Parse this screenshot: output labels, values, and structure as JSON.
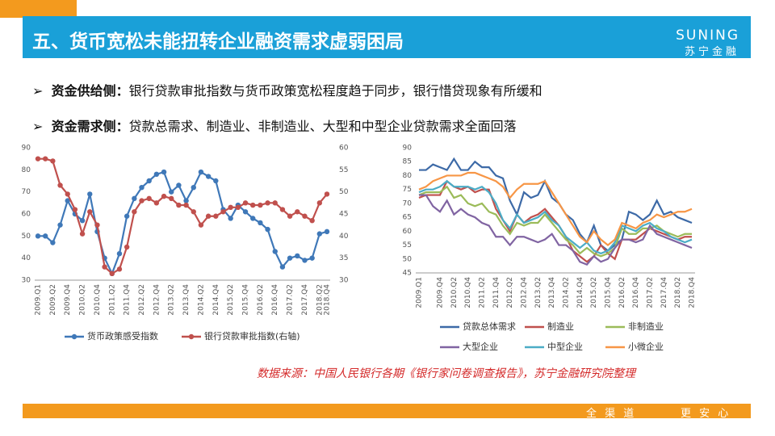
{
  "header": {
    "title": "五、货币宽松未能扭转企业融资需求虚弱困局",
    "logo_en": "SUNING",
    "logo_cn": "苏宁金融"
  },
  "bullets": [
    {
      "label": "资金供给侧：",
      "text": "银行贷款审批指数与货币政策宽松程度趋于同步，银行惜贷现象有所缓和"
    },
    {
      "label": "资金需求侧：",
      "text": "贷款总需求、制造业、非制造业、大型和中型企业贷款需求全面回落"
    }
  ],
  "chart_data": [
    {
      "type": "line",
      "marker": "circle",
      "categories": [
        "2009.Q1",
        null,
        "2009.Q2",
        null,
        "2009.Q4",
        null,
        "2010.Q2",
        null,
        "2010.Q4",
        null,
        "2011.Q2",
        null,
        "2011.Q4",
        null,
        "2012.Q2",
        null,
        "2012.Q4",
        null,
        "2013.Q2",
        null,
        "2013.Q4",
        null,
        "2014.Q2",
        null,
        "2014.Q4",
        null,
        "2015.Q2",
        null,
        "2015.Q4",
        null,
        "2016.Q2",
        null,
        "2016.Q4",
        null,
        "2017.Q2",
        null,
        "2017.Q4",
        null,
        "2018.Q2",
        "2018.Q4"
      ],
      "ylim": [
        30,
        90
      ],
      "yticks": [
        30,
        40,
        50,
        60,
        70,
        80,
        90
      ],
      "y2lim": [
        30,
        60
      ],
      "y2ticks": [
        30,
        35,
        40,
        45,
        50,
        55,
        60
      ],
      "series": [
        {
          "name": "货币政策感受指数",
          "color": "#3f78b8",
          "values": [
            50,
            50,
            47,
            55,
            66,
            60,
            57,
            69,
            52,
            40,
            33,
            42,
            59,
            67,
            72,
            75,
            78,
            79,
            70,
            73,
            66,
            72,
            79,
            77,
            75,
            62,
            58,
            64,
            61,
            58,
            56,
            53,
            43,
            36,
            40,
            41,
            39,
            40,
            51,
            52
          ]
        },
        {
          "name": "银行贷款审批指数(右轴)",
          "color": "#c0504d",
          "axis": "y2",
          "values": [
            57.5,
            57.5,
            57,
            51.5,
            49.5,
            46,
            40.5,
            45.5,
            42.5,
            33,
            31.5,
            32.5,
            37.5,
            45.5,
            48,
            48.5,
            47.5,
            49,
            48.5,
            47,
            47,
            45.5,
            42.5,
            44.5,
            44.5,
            45.5,
            46.5,
            46.5,
            47.5,
            47,
            47,
            47.5,
            47.5,
            46,
            44.5,
            45.5,
            44.5,
            43.5,
            47.5,
            49.5
          ]
        }
      ]
    },
    {
      "type": "line",
      "categories": [
        "2009.Q1",
        null,
        null,
        "2009.Q4",
        null,
        "2010.Q2",
        null,
        "2010.Q4",
        null,
        "2011.Q2",
        null,
        "2011.Q4",
        null,
        "2012.Q2",
        null,
        "2012.Q4",
        null,
        "2013.Q2",
        null,
        "2013.Q4",
        null,
        "2014.Q2",
        null,
        "2014.Q4",
        null,
        "2015.Q2",
        null,
        "2015.Q4",
        null,
        "2016.Q2",
        null,
        "2016.Q4",
        null,
        "2017.Q2",
        null,
        "2017.Q4",
        null,
        "2018.Q2",
        null,
        "2018.Q4"
      ],
      "ylim": [
        45,
        90
      ],
      "yticks": [
        45,
        50,
        55,
        60,
        65,
        70,
        75,
        80,
        85,
        90
      ],
      "series": [
        {
          "name": "贷款总体需求",
          "color": "#3d6aa7",
          "values": [
            82,
            82,
            84,
            83,
            82,
            86,
            82,
            82,
            85,
            83,
            83,
            80,
            79,
            71,
            66,
            74,
            72,
            73,
            78,
            72,
            70,
            66,
            64,
            59,
            56,
            62,
            55,
            53,
            55,
            57,
            67,
            66,
            64,
            66,
            71,
            66,
            67,
            65,
            64,
            63
          ]
        },
        {
          "name": "制造业",
          "color": "#c0504d",
          "values": [
            72,
            73,
            73,
            73,
            78,
            76,
            75,
            76,
            74,
            75,
            75,
            68,
            64,
            60,
            66,
            63,
            65,
            66,
            68,
            65,
            62,
            58,
            53,
            51,
            49,
            51,
            55,
            52,
            50,
            57,
            57,
            57,
            59,
            61,
            60,
            59,
            58,
            57,
            58,
            58
          ]
        },
        {
          "name": "非制造业",
          "color": "#9bbb59",
          "values": [
            73,
            74,
            74,
            74,
            76,
            72,
            73,
            70,
            69,
            70,
            67,
            66,
            62,
            59,
            63,
            62,
            63,
            63,
            66,
            63,
            60,
            57,
            55,
            52,
            54,
            52,
            51,
            52,
            54,
            61,
            59,
            59,
            61,
            61,
            62,
            60,
            59,
            58,
            59,
            59
          ]
        },
        {
          "name": "大型企业",
          "color": "#8064a2",
          "values": [
            73,
            73,
            69,
            67,
            71,
            66,
            68,
            66,
            65,
            63,
            62,
            58,
            58,
            55,
            58,
            58,
            57,
            56,
            57,
            59,
            55,
            55,
            53,
            49,
            48,
            51,
            49,
            50,
            54,
            57,
            57,
            56,
            57,
            62,
            59,
            58,
            57,
            56,
            55,
            54
          ]
        },
        {
          "name": "中型企业",
          "color": "#4bacc6",
          "values": [
            74,
            75,
            75,
            76,
            78,
            76,
            76,
            76,
            75,
            76,
            74,
            70,
            64,
            61,
            66,
            63,
            64,
            65,
            67,
            64,
            62,
            58,
            56,
            54,
            56,
            53,
            52,
            53,
            56,
            62,
            61,
            60,
            62,
            63,
            61,
            60,
            58,
            57,
            56,
            57
          ]
        },
        {
          "name": "小微企业",
          "color": "#f79646",
          "values": [
            75,
            76,
            78,
            79,
            80,
            80,
            80,
            81,
            81,
            80,
            79,
            78,
            76,
            72,
            75,
            77,
            77,
            77,
            78,
            74,
            70,
            66,
            62,
            58,
            56,
            60,
            57,
            55,
            57,
            63,
            62,
            61,
            63,
            64,
            66,
            65,
            66,
            67,
            67,
            68
          ]
        }
      ]
    }
  ],
  "source": "数据来源：中国人民银行各期《银行家问卷调查报告》，苏宁金融研究院整理",
  "footer": [
    "全 渠 道",
    "更 安 心"
  ]
}
